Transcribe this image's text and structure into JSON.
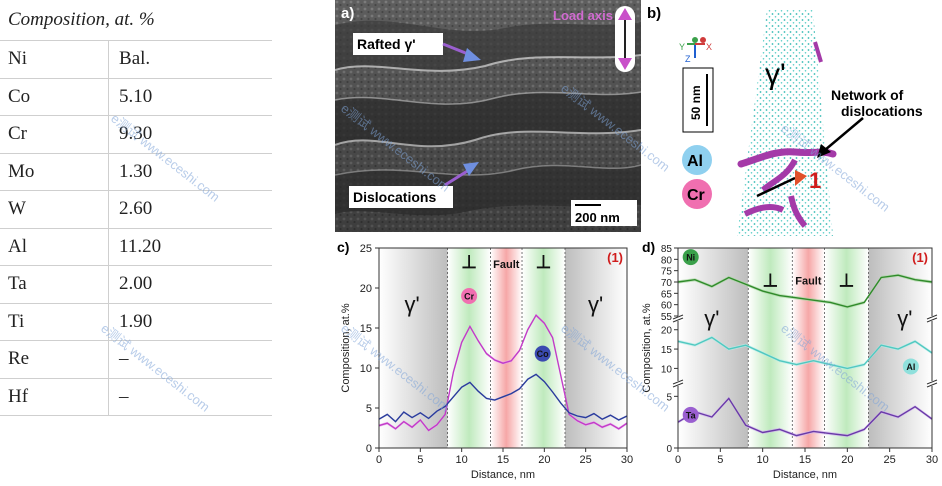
{
  "table": {
    "header": "Composition, at. %",
    "rows": [
      {
        "element": "Ni",
        "value": "Bal."
      },
      {
        "element": "Co",
        "value": "5.10"
      },
      {
        "element": "Cr",
        "value": "9.30"
      },
      {
        "element": "Mo",
        "value": "1.30"
      },
      {
        "element": "W",
        "value": "2.60"
      },
      {
        "element": "Al",
        "value": "11.20"
      },
      {
        "element": "Ta",
        "value": "2.00"
      },
      {
        "element": "Ti",
        "value": "1.90"
      },
      {
        "element": "Re",
        "value": "–"
      },
      {
        "element": "Hf",
        "value": "–"
      }
    ]
  },
  "panel_a": {
    "label": "a)",
    "load_axis": "Load axis",
    "rafted": "Rafted γ'",
    "dislocations": "Dislocations",
    "scale": "200 nm"
  },
  "panel_b": {
    "label": "b)",
    "gamma_prime": "γ'",
    "network_line1": "Network of",
    "network_line2": "dislocations",
    "marker": "1",
    "scale": "50 nm",
    "legend_al": "Al",
    "legend_cr": "Cr",
    "axis_y": "Y",
    "axis_z": "Z",
    "axis_x": "X"
  },
  "watermark": "e测试 www.eceshi.com",
  "chart_data": [
    {
      "type": "line",
      "panel": "c)",
      "marker": "(1)",
      "xlabel": "Distance, nm",
      "ylabel": "Composition, at.%",
      "xlim": [
        0,
        30
      ],
      "ylim": [
        0,
        25
      ],
      "xticks": [
        "0",
        "5",
        "10",
        "15",
        "20",
        "25",
        "30"
      ],
      "yticks": [
        "0",
        "5",
        "10",
        "15",
        "20",
        "25"
      ],
      "regions": [
        "γ'",
        "⊥",
        "Fault",
        "⊥",
        "γ'"
      ],
      "series": [
        {
          "name": "Cr",
          "x": [
            0,
            1,
            2,
            3,
            4,
            5,
            6,
            7,
            8,
            9,
            10,
            11,
            12,
            13,
            14,
            15,
            16,
            17,
            18,
            19,
            20,
            21,
            22,
            23,
            24,
            25,
            26,
            27,
            28,
            29,
            30
          ],
          "values": [
            2.8,
            3.1,
            2.4,
            3.3,
            2.6,
            3.5,
            2.2,
            2.9,
            4.2,
            9.5,
            13.2,
            15.2,
            13.4,
            11.8,
            11.0,
            10.6,
            10.9,
            12.2,
            14.8,
            16.6,
            15.6,
            13.8,
            9.0,
            4.2,
            3.4,
            2.9,
            3.2,
            2.6,
            3.0,
            2.4,
            3.1
          ]
        },
        {
          "name": "Co",
          "x": [
            0,
            1,
            2,
            3,
            4,
            5,
            6,
            7,
            8,
            9,
            10,
            11,
            12,
            13,
            14,
            15,
            16,
            17,
            18,
            19,
            20,
            21,
            22,
            23,
            24,
            25,
            26,
            27,
            28,
            29,
            30
          ],
          "values": [
            3.6,
            4.2,
            3.3,
            4.5,
            3.8,
            4.4,
            3.7,
            4.6,
            5.2,
            6.4,
            7.6,
            8.2,
            7.1,
            6.2,
            6.0,
            6.4,
            6.8,
            7.4,
            8.6,
            9.2,
            8.3,
            7.0,
            5.6,
            4.4,
            4.0,
            3.8,
            4.3,
            3.6,
            4.1,
            3.5,
            4.0
          ]
        }
      ]
    },
    {
      "type": "line",
      "panel": "d)",
      "marker": "(1)",
      "xlabel": "Distance, nm",
      "ylabel": "Composition, at.%",
      "xlim": [
        0,
        30
      ],
      "xticks": [
        "0",
        "5",
        "10",
        "15",
        "20",
        "25",
        "30"
      ],
      "yticks_top": [
        "55",
        "60",
        "65",
        "70",
        "75",
        "80",
        "85"
      ],
      "yticks_mid": [
        "10",
        "15",
        "20"
      ],
      "yticks_bot": [
        "0",
        "5"
      ],
      "regions": [
        "γ'",
        "⊥",
        "Fault",
        "⊥",
        "γ'"
      ],
      "series": [
        {
          "name": "Ni",
          "x": [
            0,
            2,
            4,
            6,
            8,
            10,
            12,
            14,
            16,
            18,
            20,
            22,
            24,
            26,
            28,
            30
          ],
          "values": [
            70,
            71,
            68,
            72,
            69,
            66,
            64,
            63,
            62,
            61,
            59,
            61,
            72,
            73,
            71,
            70
          ]
        },
        {
          "name": "Al",
          "x": [
            0,
            2,
            4,
            6,
            8,
            10,
            12,
            14,
            16,
            18,
            20,
            22,
            24,
            26,
            28,
            30
          ],
          "values": [
            17,
            16,
            18,
            15,
            16,
            14,
            12,
            11,
            12,
            11,
            10,
            11,
            16,
            15,
            17,
            14
          ]
        },
        {
          "name": "Ta",
          "x": [
            0,
            2,
            4,
            6,
            8,
            10,
            12,
            14,
            16,
            18,
            20,
            22,
            24,
            26,
            28,
            30
          ],
          "values": [
            2.5,
            3.5,
            3.0,
            4.8,
            2.2,
            1.5,
            1.8,
            1.2,
            1.6,
            1.4,
            1.2,
            1.8,
            3.5,
            3.0,
            4.0,
            2.8
          ]
        }
      ]
    }
  ]
}
